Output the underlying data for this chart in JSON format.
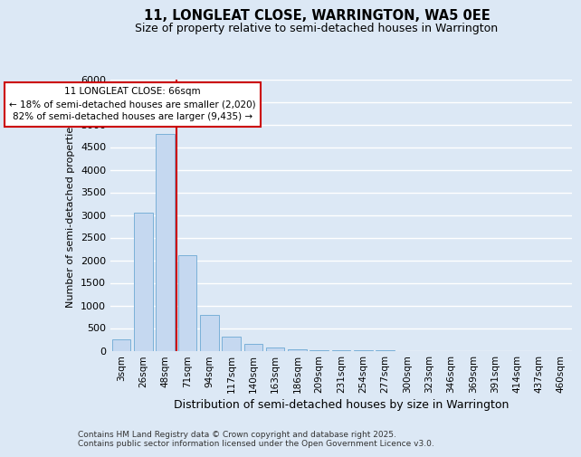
{
  "title1": "11, LONGLEAT CLOSE, WARRINGTON, WA5 0EE",
  "title2": "Size of property relative to semi-detached houses in Warrington",
  "xlabel": "Distribution of semi-detached houses by size in Warrington",
  "ylabel": "Number of semi-detached properties",
  "categories": [
    "3sqm",
    "26sqm",
    "48sqm",
    "71sqm",
    "94sqm",
    "117sqm",
    "140sqm",
    "163sqm",
    "186sqm",
    "209sqm",
    "231sqm",
    "254sqm",
    "277sqm",
    "300sqm",
    "323sqm",
    "346sqm",
    "369sqm",
    "391sqm",
    "414sqm",
    "437sqm",
    "460sqm"
  ],
  "values": [
    250,
    3050,
    4800,
    2120,
    800,
    310,
    150,
    75,
    30,
    10,
    5,
    3,
    1,
    0,
    0,
    0,
    0,
    0,
    0,
    0,
    0
  ],
  "bar_color": "#c5d8f0",
  "bar_edge_color": "#7ab0d8",
  "vline_x_index": 3,
  "vline_color": "#cc0000",
  "annotation_title": "11 LONGLEAT CLOSE: 66sqm",
  "annotation_line1": "← 18% of semi-detached houses are smaller (2,020)",
  "annotation_line2": "82% of semi-detached houses are larger (9,435) →",
  "annotation_box_color": "white",
  "annotation_box_edge": "#cc0000",
  "ylim": [
    0,
    6000
  ],
  "yticks": [
    0,
    500,
    1000,
    1500,
    2000,
    2500,
    3000,
    3500,
    4000,
    4500,
    5000,
    5500,
    6000
  ],
  "background_color": "#dce8f5",
  "grid_color": "#ffffff",
  "footer": "Contains HM Land Registry data © Crown copyright and database right 2025.\nContains public sector information licensed under the Open Government Licence v3.0.",
  "title1_fontsize": 10.5,
  "title2_fontsize": 9,
  "xlabel_fontsize": 9,
  "ylabel_fontsize": 8
}
